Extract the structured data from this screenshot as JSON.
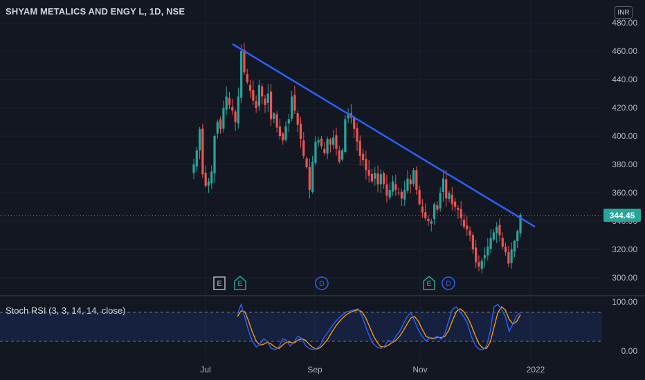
{
  "header": {
    "symbol_title": "SHYAM METALICS AND ENGY L, 1D, NSE",
    "currency": "INR"
  },
  "price": {
    "last": "344.45",
    "last_value": 344.45,
    "color_up": "#26a69a",
    "color_down": "#ef5350"
  },
  "price_axis": {
    "ticks": [
      "480.00",
      "460.00",
      "440.00",
      "420.00",
      "400.00",
      "380.00",
      "360.00",
      "340.00",
      "320.00",
      "300.00"
    ]
  },
  "time_axis": {
    "ticks": [
      "Jul",
      "Sep",
      "Nov",
      "2022"
    ]
  },
  "events": [
    {
      "letter": "E",
      "kind": "plain"
    },
    {
      "letter": "E",
      "kind": "earnings"
    },
    {
      "letter": "D",
      "kind": "dividend"
    },
    {
      "letter": "E",
      "kind": "earnings"
    },
    {
      "letter": "D",
      "kind": "dividend"
    }
  ],
  "indicator": {
    "label": "Stoch RSI (3, 3, 14, 14, close)",
    "ticks": [
      "100.00",
      "0.00"
    ],
    "k_color": "#2962ff",
    "d_color": "#ff9800"
  },
  "trendline_color": "#2962ff",
  "chart_data": {
    "type": "candlestick",
    "y_range": [
      290,
      485
    ],
    "indicator_range": [
      0,
      100
    ],
    "trendline": [
      [
        0,
        465
      ],
      [
        57,
        336
      ]
    ],
    "closes": [
      380,
      390,
      405,
      373,
      365,
      368,
      375,
      400,
      410,
      405,
      420,
      428,
      422,
      418,
      410,
      428,
      460,
      445,
      438,
      432,
      425,
      420,
      436,
      428,
      422,
      430,
      412,
      416,
      406,
      400,
      397,
      407,
      412,
      428,
      418,
      408,
      398,
      386,
      378,
      362,
      382,
      396,
      397,
      393,
      388,
      398,
      394,
      399,
      391,
      382,
      390,
      412,
      416,
      413,
      405,
      396,
      386,
      383,
      376,
      372,
      368,
      374,
      366,
      373,
      366,
      358,
      362,
      368,
      362,
      360,
      356,
      362,
      370,
      366,
      376,
      362,
      352,
      346,
      342,
      340,
      340,
      352,
      348,
      360,
      370,
      356,
      360,
      352,
      350,
      348,
      342,
      336,
      334,
      330,
      320,
      311,
      308,
      312,
      316,
      322,
      328,
      332,
      336,
      330,
      322,
      318,
      310,
      320,
      326,
      333,
      344.45
    ],
    "stoch_k": [
      75,
      95,
      68,
      40,
      20,
      8,
      15,
      25,
      18,
      5,
      3,
      8,
      25,
      22,
      10,
      18,
      30,
      26,
      12,
      5,
      3,
      5,
      12,
      28,
      38,
      50,
      60,
      68,
      75,
      80,
      82,
      84,
      86,
      72,
      50,
      30,
      15,
      8,
      5,
      10,
      22,
      18,
      30,
      40,
      55,
      70,
      78,
      60,
      42,
      30,
      20,
      28,
      26,
      30,
      24,
      36,
      62,
      85,
      90,
      80,
      70,
      55,
      30,
      12,
      4,
      2,
      10,
      40,
      90,
      95,
      85,
      70,
      40,
      55,
      72,
      78
    ],
    "stoch_d": [
      70,
      82,
      80,
      60,
      38,
      20,
      12,
      14,
      18,
      14,
      8,
      5,
      12,
      18,
      18,
      16,
      22,
      25,
      22,
      14,
      7,
      4,
      7,
      15,
      25,
      38,
      50,
      60,
      68,
      75,
      79,
      82,
      84,
      80,
      68,
      50,
      32,
      18,
      9,
      8,
      12,
      17,
      22,
      30,
      42,
      55,
      68,
      70,
      60,
      44,
      30,
      26,
      25,
      28,
      27,
      30,
      42,
      62,
      80,
      86,
      80,
      68,
      52,
      32,
      15,
      6,
      5,
      18,
      48,
      78,
      90,
      84,
      65,
      55,
      60,
      74
    ]
  }
}
